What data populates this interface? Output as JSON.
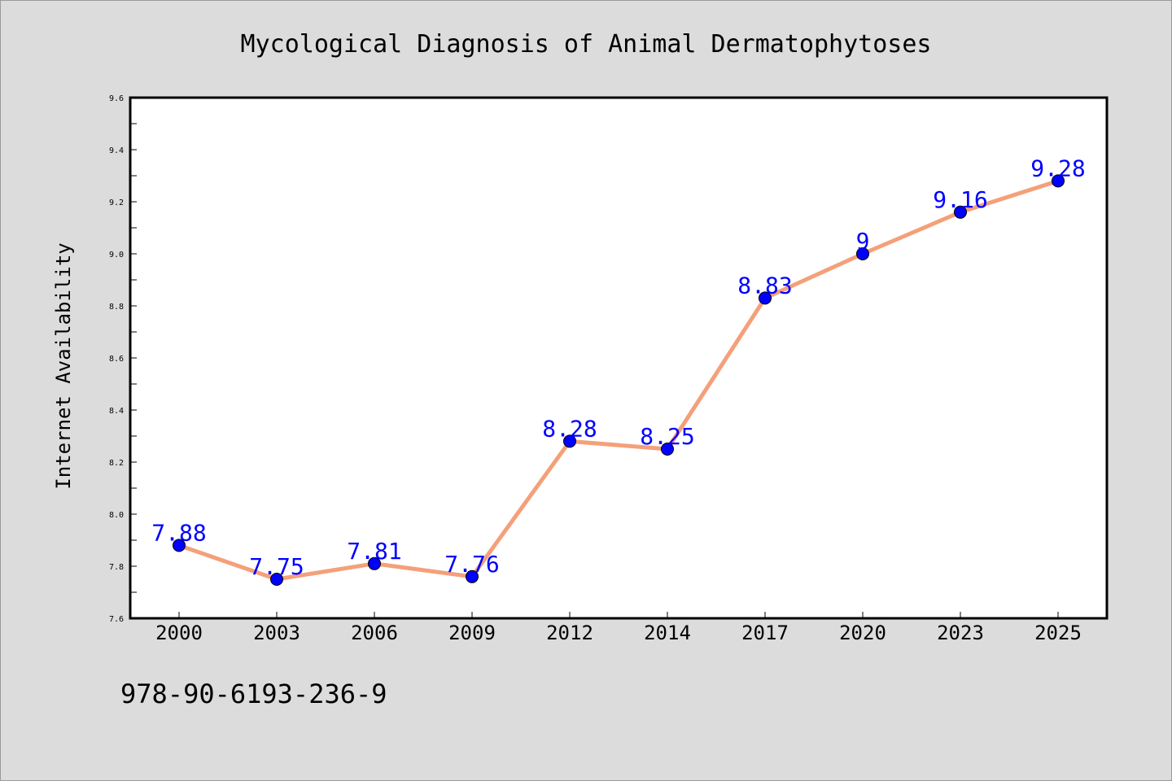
{
  "chart_data": {
    "type": "line",
    "title": "Mycological Diagnosis of Animal Dermatophytoses",
    "xlabel": "",
    "ylabel": "Internet Availability",
    "categories": [
      "2000",
      "2003",
      "2006",
      "2009",
      "2012",
      "2014",
      "2017",
      "2020",
      "2023",
      "2025"
    ],
    "series": [
      {
        "values": [
          7.88,
          7.75,
          7.81,
          7.76,
          8.28,
          8.25,
          8.83,
          9.0,
          9.16,
          9.28
        ],
        "labels": [
          "7.88",
          "7.75",
          "7.81",
          "7.76",
          "8.28",
          "8.25",
          "8.83",
          "9",
          "9.16",
          "9.28"
        ],
        "line_color": "#f4a07a",
        "marker_color": "#0000ff",
        "label_color": "#0000ff"
      }
    ],
    "ylim": [
      7.6,
      9.6
    ],
    "yticks": [
      "7.6",
      "7.8",
      "8.0",
      "8.2",
      "8.4",
      "8.6",
      "8.8",
      "9.0",
      "9.2",
      "9.4",
      "9.6"
    ],
    "grid": false,
    "legend": "none"
  },
  "footer_text": "978-90-6193-236-9",
  "colors": {
    "background": "#dcdcdc",
    "plot_area": "#ffffff",
    "axis": "#000000"
  }
}
